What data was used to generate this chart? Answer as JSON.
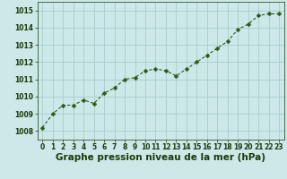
{
  "x": [
    0,
    1,
    2,
    3,
    4,
    5,
    6,
    7,
    8,
    9,
    10,
    11,
    12,
    13,
    14,
    15,
    16,
    17,
    18,
    19,
    20,
    21,
    22,
    23
  ],
  "y": [
    1008.2,
    1009.0,
    1009.5,
    1009.5,
    1009.8,
    1009.6,
    1010.2,
    1010.5,
    1011.0,
    1011.1,
    1011.5,
    1011.6,
    1011.5,
    1011.2,
    1011.6,
    1012.0,
    1012.4,
    1012.8,
    1013.2,
    1013.9,
    1014.2,
    1014.7,
    1014.8,
    1014.8
  ],
  "line_color": "#2d5a1b",
  "marker_color": "#2d5a1b",
  "bg_color": "#cce8e8",
  "plot_bg_color": "#cce8e8",
  "grid_color": "#aacccc",
  "xlabel": "Graphe pression niveau de la mer (hPa)",
  "xlabel_color": "#1a3a0a",
  "xlabel_fontsize": 7.5,
  "tick_color": "#1a3a0a",
  "tick_fontsize": 5.5,
  "ylim": [
    1007.5,
    1015.5
  ],
  "yticks": [
    1008,
    1009,
    1010,
    1011,
    1012,
    1013,
    1014,
    1015
  ],
  "xlim": [
    -0.5,
    23.5
  ],
  "xticks": [
    0,
    1,
    2,
    3,
    4,
    5,
    6,
    7,
    8,
    9,
    10,
    11,
    12,
    13,
    14,
    15,
    16,
    17,
    18,
    19,
    20,
    21,
    22,
    23
  ],
  "linewidth": 0.8,
  "markersize": 2.5
}
